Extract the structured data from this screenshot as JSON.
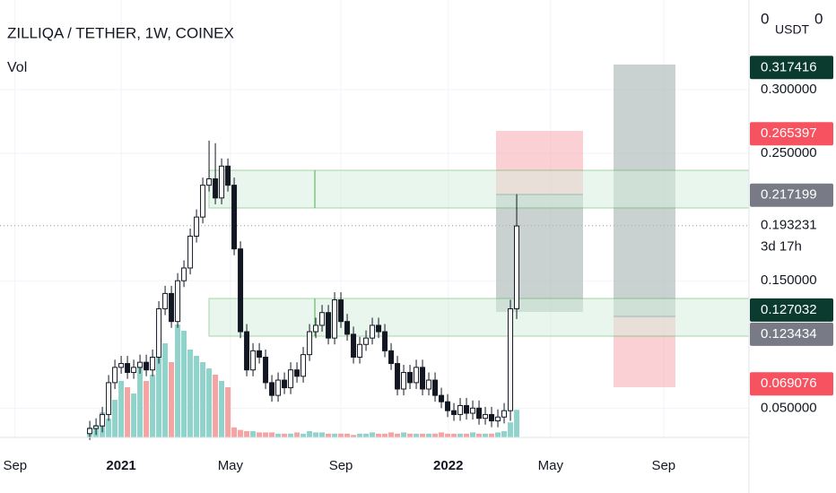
{
  "chart_data": {
    "type": "candlestick",
    "title": "ZILLIQA / TETHER, 1W, COINEX",
    "indicator": "Vol",
    "scale_left": "0",
    "currency": "USDT",
    "scale_right": "0",
    "countdown": "3d 17h",
    "up_color": "#26a69a",
    "down_color": "#ef5350",
    "up_volume_color": "#8fd3cb",
    "down_volume_color": "#f4a5a3",
    "xlim": [
      -14.3,
      105
    ],
    "ylim": [
      0.027,
      0.3704
    ],
    "volume_lim": [
      0,
      100
    ],
    "xticks": [
      {
        "value": -11.9,
        "label": "Sep"
      },
      {
        "value": 5,
        "label": "2021"
      },
      {
        "value": 22.4,
        "label": "May"
      },
      {
        "value": 40,
        "label": "Sep"
      },
      {
        "value": 57.1,
        "label": "2022"
      },
      {
        "value": 73.4,
        "label": "May"
      },
      {
        "value": 91.4,
        "label": "Sep"
      }
    ],
    "yticks": [
      {
        "value": 0.05,
        "label": "0.050000"
      },
      {
        "value": 0.15,
        "label": "0.150000"
      },
      {
        "value": 0.25,
        "label": "0.250000"
      },
      {
        "value": 0.3,
        "label": "0.300000"
      }
    ],
    "open": [
      0.03,
      0.034,
      0.036,
      0.045,
      0.07,
      0.082,
      0.085,
      0.078,
      0.082,
      0.086,
      0.08,
      0.09,
      0.128,
      0.14,
      0.118,
      0.15,
      0.16,
      0.185,
      0.2,
      0.225,
      0.23,
      0.215,
      0.24,
      0.225,
      0.175,
      0.11,
      0.08,
      0.095,
      0.09,
      0.07,
      0.06,
      0.072,
      0.066,
      0.08,
      0.075,
      0.092,
      0.11,
      0.115,
      0.125,
      0.105,
      0.135,
      0.118,
      0.108,
      0.09,
      0.1,
      0.105,
      0.115,
      0.11,
      0.095,
      0.085,
      0.065,
      0.078,
      0.07,
      0.082,
      0.065,
      0.072,
      0.06,
      0.055,
      0.048,
      0.045,
      0.052,
      0.046,
      0.05,
      0.042,
      0.045,
      0.04,
      0.043,
      0.048,
      0.128
    ],
    "high": [
      0.04,
      0.042,
      0.051,
      0.076,
      0.088,
      0.091,
      0.091,
      0.088,
      0.092,
      0.092,
      0.096,
      0.134,
      0.146,
      0.146,
      0.156,
      0.166,
      0.191,
      0.206,
      0.231,
      0.26,
      0.258,
      0.246,
      0.246,
      0.231,
      0.181,
      0.116,
      0.101,
      0.101,
      0.096,
      0.076,
      0.078,
      0.078,
      0.086,
      0.086,
      0.098,
      0.116,
      0.121,
      0.131,
      0.131,
      0.141,
      0.141,
      0.124,
      0.114,
      0.106,
      0.111,
      0.121,
      0.121,
      0.116,
      0.101,
      0.091,
      0.084,
      0.084,
      0.088,
      0.088,
      0.078,
      0.078,
      0.066,
      0.061,
      0.054,
      0.058,
      0.058,
      0.056,
      0.056,
      0.051,
      0.051,
      0.049,
      0.054,
      0.135,
      0.218
    ],
    "low": [
      0.025,
      0.029,
      0.031,
      0.04,
      0.065,
      0.077,
      0.073,
      0.073,
      0.077,
      0.075,
      0.075,
      0.085,
      0.123,
      0.113,
      0.113,
      0.145,
      0.155,
      0.18,
      0.195,
      0.22,
      0.21,
      0.21,
      0.22,
      0.17,
      0.105,
      0.075,
      0.075,
      0.085,
      0.065,
      0.055,
      0.055,
      0.061,
      0.061,
      0.07,
      0.07,
      0.087,
      0.105,
      0.11,
      0.1,
      0.1,
      0.113,
      0.103,
      0.085,
      0.085,
      0.095,
      0.1,
      0.105,
      0.09,
      0.08,
      0.06,
      0.06,
      0.065,
      0.065,
      0.06,
      0.06,
      0.055,
      0.05,
      0.043,
      0.04,
      0.04,
      0.041,
      0.041,
      0.037,
      0.037,
      0.035,
      0.035,
      0.038,
      0.04,
      0.12
    ],
    "close": [
      0.034,
      0.036,
      0.045,
      0.07,
      0.082,
      0.085,
      0.078,
      0.082,
      0.086,
      0.08,
      0.09,
      0.128,
      0.14,
      0.118,
      0.15,
      0.16,
      0.185,
      0.2,
      0.225,
      0.23,
      0.215,
      0.24,
      0.225,
      0.175,
      0.11,
      0.08,
      0.095,
      0.09,
      0.07,
      0.06,
      0.072,
      0.066,
      0.08,
      0.075,
      0.092,
      0.11,
      0.115,
      0.125,
      0.105,
      0.135,
      0.118,
      0.108,
      0.09,
      0.1,
      0.105,
      0.115,
      0.11,
      0.095,
      0.085,
      0.065,
      0.078,
      0.07,
      0.082,
      0.065,
      0.072,
      0.06,
      0.055,
      0.048,
      0.045,
      0.052,
      0.046,
      0.05,
      0.042,
      0.045,
      0.04,
      0.043,
      0.048,
      0.128,
      0.193
    ],
    "volume": [
      8,
      10,
      20,
      15,
      30,
      45,
      40,
      35,
      60,
      45,
      50,
      70,
      75,
      60,
      90,
      85,
      70,
      65,
      60,
      55,
      50,
      45,
      40,
      8,
      6,
      5,
      5,
      4,
      4,
      4,
      3,
      3,
      3,
      4,
      3,
      5,
      4,
      4,
      3,
      3,
      3,
      3,
      2,
      3,
      3,
      4,
      3,
      3,
      4,
      3,
      4,
      3,
      3,
      3,
      3,
      3,
      4,
      3,
      3,
      3,
      3,
      4,
      3,
      3,
      3,
      4,
      5,
      12,
      22
    ],
    "price_tags": [
      {
        "value": 0.317416,
        "color": "#0b3b2e",
        "text_color": "#ffffff"
      },
      {
        "value": 0.265397,
        "color": "#f7525f",
        "text_color": "#ffffff"
      },
      {
        "value": 0.217199,
        "color": "#787b86",
        "text_color": "#ffffff"
      },
      {
        "value": 0.193231,
        "color": "#ffffff",
        "text_color": "#131722"
      },
      {
        "value": 0.127032,
        "color": "#0b3b2e",
        "text_color": "#ffffff"
      },
      {
        "value": 0.123434,
        "color": "#787b86",
        "text_color": "#ffffff"
      },
      {
        "value": 0.069076,
        "color": "#f7525f",
        "text_color": "#ffffff"
      }
    ],
    "current_price": 0.193231
  }
}
